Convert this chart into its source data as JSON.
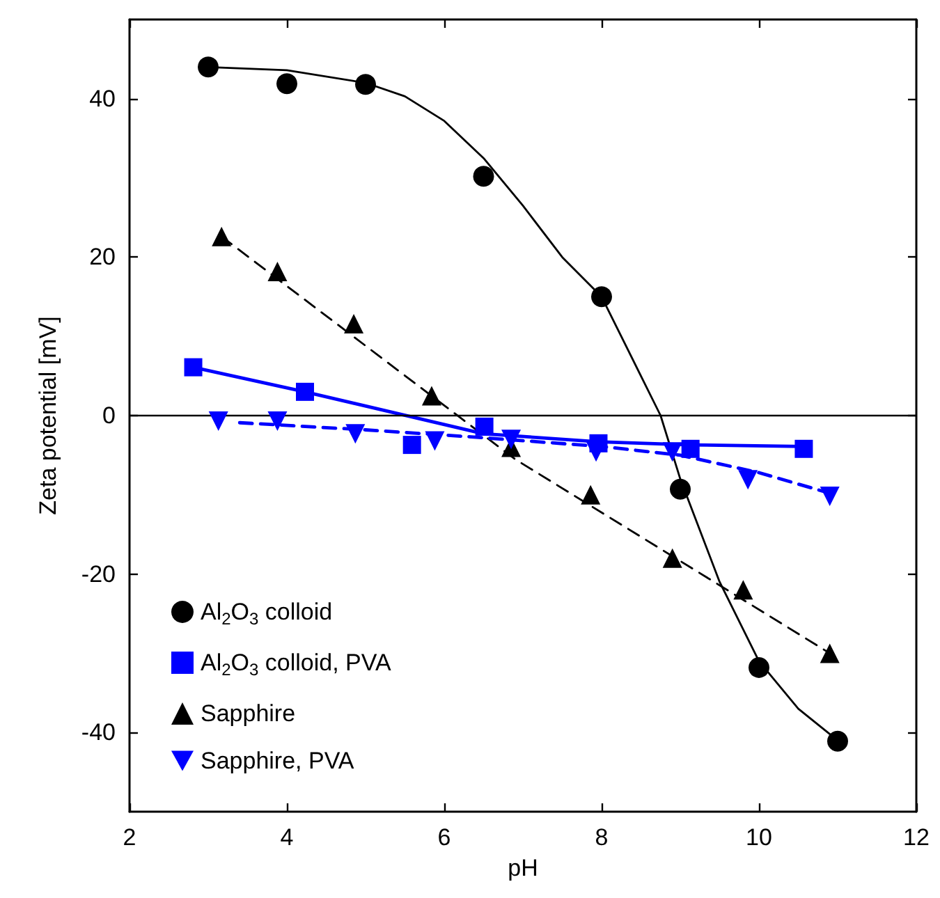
{
  "chart_data": {
    "type": "scatter",
    "xlabel": "pH",
    "ylabel": "Zeta potential [mV]",
    "xlim": [
      2,
      12
    ],
    "xticks": [
      2,
      4,
      6,
      8,
      10,
      12
    ],
    "ylim": [
      -50,
      50
    ],
    "yticks": [
      -40,
      -20,
      0,
      20,
      40
    ],
    "grid": false,
    "legend": "bottom left",
    "ref_lines": [
      {
        "axis": "y",
        "value": 0,
        "color": "#000000",
        "line_style": "solid"
      }
    ],
    "series": [
      {
        "name": "Al$_{2}$O$_{3}$ colloid",
        "color": "#000000",
        "marker": "circle",
        "x": [
          3,
          4,
          5,
          6.5,
          8,
          9,
          10,
          11
        ],
        "values": [
          44,
          41.9,
          41.8,
          30.2,
          15,
          -9.3,
          -31.8,
          -41.1
        ]
      },
      {
        "name": "Al$_{2}$O$_{3}$ colloid, PVA",
        "color": "#0000ff",
        "marker": "square",
        "x": [
          2.81,
          4.23,
          5.59,
          6.51,
          7.96,
          9.13,
          10.57
        ],
        "values": [
          6.1,
          3,
          -3.7,
          -1.4,
          -3.5,
          -4.2,
          -4.2
        ]
      },
      {
        "name": "Sapphire",
        "color": "#000000",
        "marker": "triangle",
        "x": [
          3.17,
          3.88,
          4.85,
          5.84,
          6.85,
          7.86,
          8.9,
          9.8,
          10.9
        ],
        "values": [
          22.6,
          18.2,
          11.6,
          2.5,
          -4,
          -10,
          -18,
          -22,
          -30
        ]
      },
      {
        "name": "Sapphire, PVA",
        "color": "#0000ff",
        "marker": "triangle-down",
        "x": [
          3.13,
          3.88,
          4.87,
          5.88,
          6.85,
          7.93,
          8.9,
          9.86,
          10.9
        ],
        "values": [
          -0.7,
          -0.7,
          -2.3,
          -3.2,
          -3,
          -4.6,
          -4.6,
          -8.1,
          -10.2
        ]
      },
      {
        "type": "line",
        "color": "#000000",
        "line_style": "solid",
        "marker": "none",
        "x": [
          3,
          4,
          5,
          5.5,
          6,
          6.5,
          7,
          7.5,
          8,
          8.5,
          8.75,
          9,
          9.5,
          10,
          10.5,
          11
        ],
        "values": [
          44,
          43.6,
          42,
          40.3,
          37.2,
          32.5,
          26.5,
          20,
          15,
          5,
          0,
          -8,
          -21,
          -31,
          -37,
          -41
        ]
      },
      {
        "type": "line",
        "color": "#0000ff",
        "line_style": "solid",
        "marker": "none",
        "x": [
          2.81,
          4.23,
          6.5,
          7.96,
          9.13,
          10.57
        ],
        "values": [
          6.1,
          3,
          -2.3,
          -3.3,
          -3.7,
          -3.9
        ]
      },
      {
        "type": "line",
        "color": "#000000",
        "line_style": "dashed",
        "marker": "none",
        "x": [
          3.17,
          6.9,
          10.9
        ],
        "values": [
          22.6,
          -5.5,
          -30
        ]
      },
      {
        "type": "line",
        "color": "#0000ff",
        "line_style": "dashed",
        "marker": "none",
        "x": [
          3.4,
          5,
          6.5,
          8,
          9,
          10,
          10.9
        ],
        "values": [
          -0.9,
          -1.8,
          -2.8,
          -3.9,
          -5,
          -7.2,
          -9.8
        ]
      }
    ]
  }
}
